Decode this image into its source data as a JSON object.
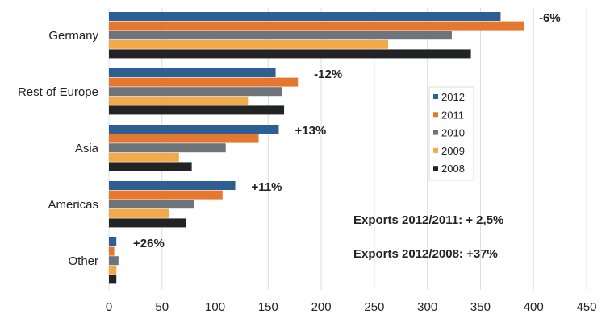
{
  "chart_data": {
    "type": "bar",
    "orientation": "horizontal",
    "categories": [
      "Germany",
      "Rest of Europe",
      "Asia",
      "Americas",
      "Other"
    ],
    "series": [
      {
        "name": "2012",
        "color": "#2e5f93",
        "values": [
          369,
          157,
          160,
          119,
          7
        ]
      },
      {
        "name": "2011",
        "color": "#e5782e",
        "values": [
          391,
          178,
          141,
          107,
          5
        ]
      },
      {
        "name": "2010",
        "color": "#6d747b",
        "values": [
          323,
          163,
          110,
          80,
          9
        ]
      },
      {
        "name": "2009",
        "color": "#f2a94a",
        "values": [
          263,
          131,
          66,
          57,
          7
        ]
      },
      {
        "name": "2008",
        "color": "#222325",
        "values": [
          341,
          165,
          78,
          73,
          7
        ]
      }
    ],
    "change_labels": [
      "-6%",
      "-12%",
      "+13%",
      "+11%",
      "+26%"
    ],
    "xlim": [
      0,
      450
    ],
    "xticks": [
      0,
      50,
      100,
      150,
      200,
      250,
      300,
      350,
      400,
      450
    ],
    "grid": true,
    "legend_placement": "center-right",
    "annotations": [
      "Exports 2012/2011: + 2,5%",
      "Exports 2012/2008: +37%"
    ]
  }
}
